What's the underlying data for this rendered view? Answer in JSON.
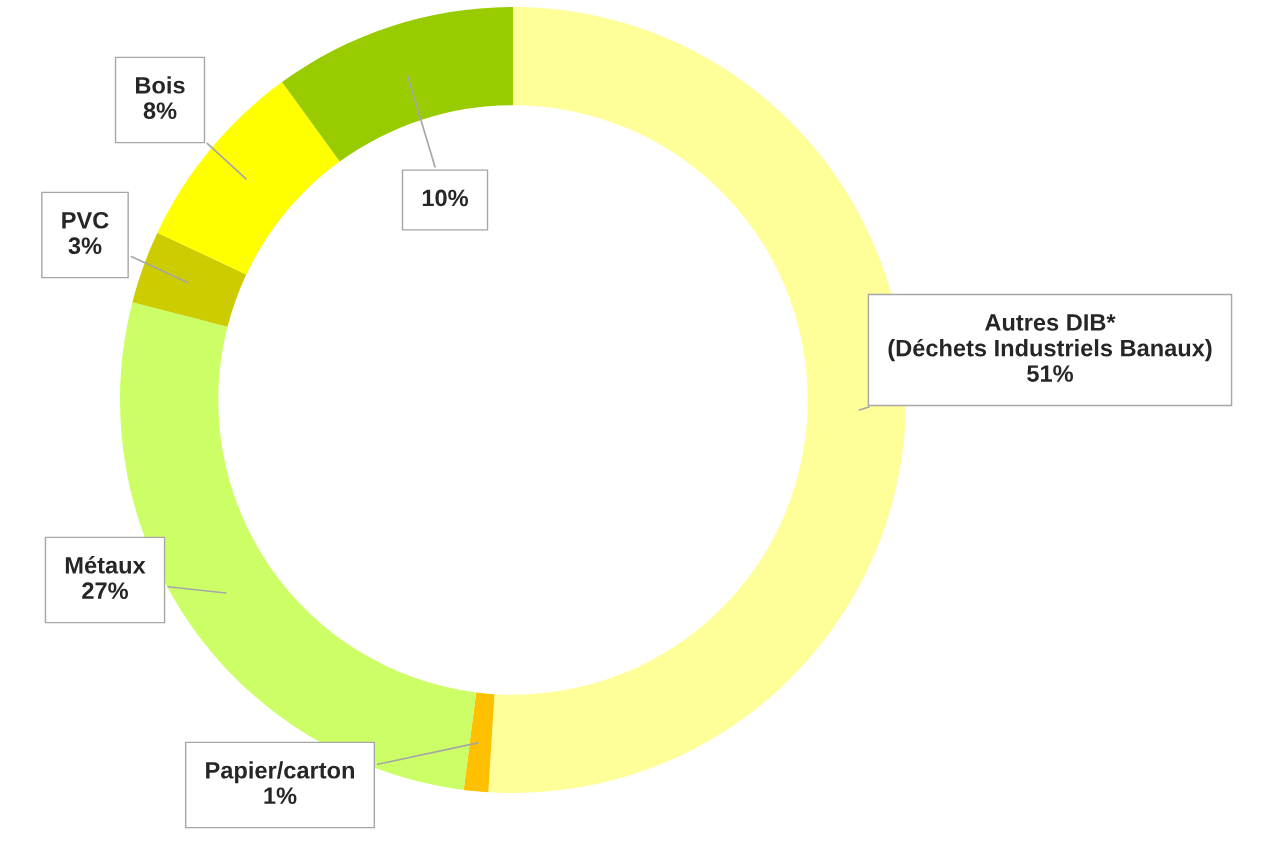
{
  "chart_data": {
    "type": "donut",
    "categories": [
      "Autres DIB*\n(Déchets Industriels Banaux)",
      "Papier/carton",
      "Métaux",
      "PVC",
      "Bois",
      null
    ],
    "values": [
      51,
      1,
      27,
      3,
      8,
      10
    ],
    "colors": [
      "#ffff99",
      "#ffc000",
      "#ccff66",
      "#cccc00",
      "#ffff00",
      "#99cc00"
    ],
    "value_labels": [
      "51%",
      "1%",
      "27%",
      "3%",
      "8%",
      "10%"
    ],
    "legend": false
  }
}
